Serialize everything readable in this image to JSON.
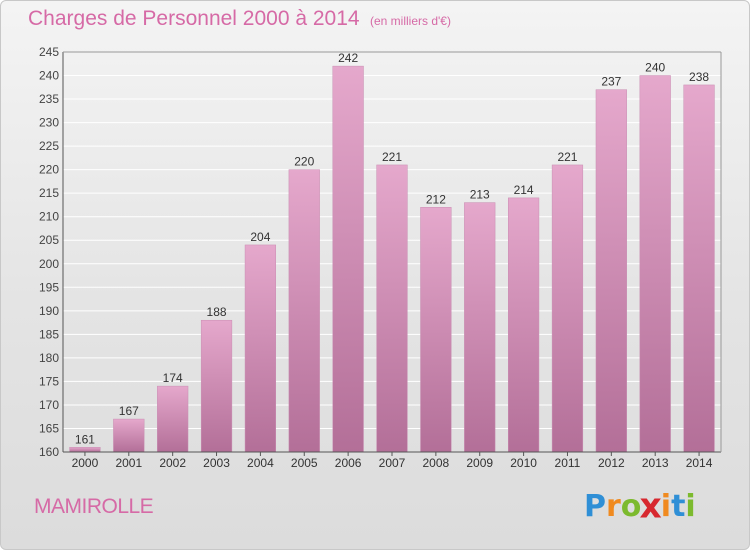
{
  "header": {
    "title": "Charges de Personnel 2000 à 2014",
    "subtitle": "(en milliers d'€)"
  },
  "footer": {
    "commune": "MAMIROLLE",
    "logo_letters": [
      {
        "ch": "P",
        "color": "#2f8fd6"
      },
      {
        "ch": "r",
        "color": "#f08a1f"
      },
      {
        "ch": "o",
        "color": "#7cba2e"
      },
      {
        "ch": "x",
        "color": "#d7282f"
      },
      {
        "ch": "i",
        "color": "#f08a1f"
      },
      {
        "ch": "t",
        "color": "#2f8fd6"
      },
      {
        "ch": "i",
        "color": "#7cba2e"
      }
    ]
  },
  "colors": {
    "accent": "#d66aa6",
    "bar_top": "#e5a8cc",
    "bar_bottom": "#b36f98"
  },
  "chart_data": {
    "type": "bar",
    "title": "Charges de Personnel 2000 à 2014",
    "subtitle": "(en milliers d'€)",
    "categories": [
      "2000",
      "2001",
      "2002",
      "2003",
      "2004",
      "2005",
      "2006",
      "2007",
      "2008",
      "2009",
      "2010",
      "2011",
      "2012",
      "2013",
      "2014"
    ],
    "values": [
      161,
      167,
      174,
      188,
      204,
      220,
      242,
      221,
      212,
      213,
      214,
      221,
      237,
      240,
      238
    ],
    "ylim": [
      160,
      245
    ],
    "yticks": [
      160,
      165,
      170,
      175,
      180,
      185,
      190,
      195,
      200,
      205,
      210,
      215,
      220,
      225,
      230,
      235,
      240,
      245
    ],
    "grid": true,
    "xlabel": "",
    "ylabel": ""
  }
}
